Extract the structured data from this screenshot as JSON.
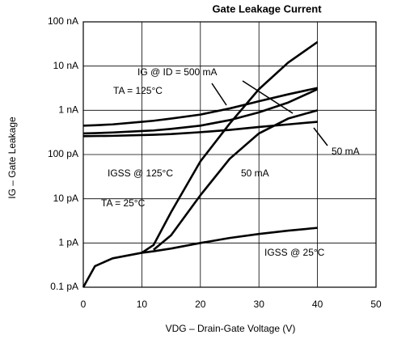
{
  "chart_data": {
    "type": "line",
    "title": "Gate Leakage Current",
    "x_label": "VDG – Drain-Gate Voltage (V)",
    "y_label": "IG – Gate Leakage",
    "x": [
      0,
      2,
      5,
      10,
      12,
      15,
      20,
      25,
      30,
      35,
      40
    ],
    "series": [
      {
        "color": "#000000",
        "values": [
          0.1,
          0.3,
          0.45,
          0.6,
          0.65,
          0.75,
          1,
          1.3,
          1.6,
          1.9,
          2.2
        ]
      },
      {
        "color": "#000000",
        "values": [
          null,
          null,
          null,
          0.6,
          0.9,
          5,
          70,
          500,
          3000,
          12000,
          35000
        ]
      },
      {
        "color": "#000000",
        "values": [
          null,
          null,
          null,
          null,
          0.7,
          1.5,
          12,
          80,
          300,
          650,
          1000
        ]
      },
      {
        "color": "#000000",
        "values": [
          450,
          460,
          480,
          550,
          580,
          650,
          800,
          1100,
          1600,
          2300,
          3200
        ]
      },
      {
        "color": "#000000",
        "values": [
          300,
          305,
          315,
          340,
          350,
          380,
          450,
          600,
          900,
          1500,
          3000
        ]
      },
      {
        "color": "#000000",
        "values": [
          260,
          262,
          265,
          275,
          280,
          290,
          320,
          360,
          420,
          480,
          550
        ]
      }
    ],
    "xlim": [
      0,
      50
    ],
    "xticks": [
      0,
      10,
      20,
      30,
      40,
      50
    ],
    "ylim": [
      0.1,
      100000
    ],
    "log_y": true,
    "yticks": [
      {
        "value": 0.1,
        "label": "0.1 pA"
      },
      {
        "value": 1,
        "label": "1 pA"
      },
      {
        "value": 10,
        "label": "10 pA"
      },
      {
        "value": 100,
        "label": "100 pA"
      },
      {
        "value": 1000,
        "label": "1 nA"
      },
      {
        "value": 10000,
        "label": "10 nA"
      },
      {
        "value": 100000,
        "label": "100 nA"
      }
    ],
    "grid": true,
    "annotations": [
      "IG @ ID = 500 mA",
      "TA = 125°C",
      "IGSS @ 125°C",
      "50 mA",
      "50 mA",
      "TA = 25°C",
      "IGSS @ 25°C"
    ]
  }
}
